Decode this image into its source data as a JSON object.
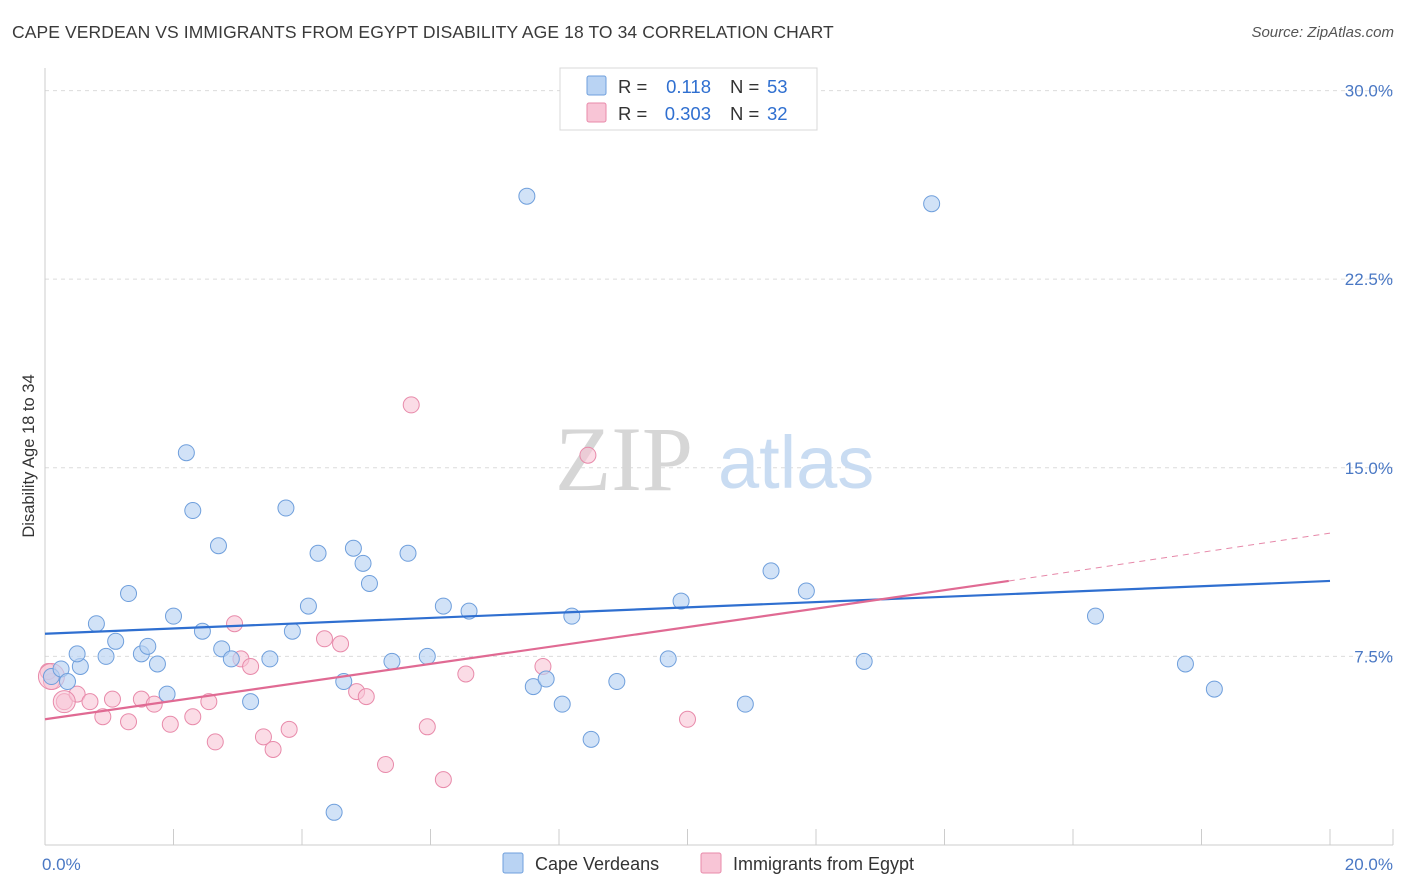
{
  "title": "CAPE VERDEAN VS IMMIGRANTS FROM EGYPT DISABILITY AGE 18 TO 34 CORRELATION CHART",
  "source": "Source: ZipAtlas.com",
  "watermark": {
    "zip": "ZIP",
    "atlas": "atlas"
  },
  "colors": {
    "blue_fill": "#b9d3f3",
    "blue_stroke": "#6f9fdc",
    "blue_line": "#2f6fd0",
    "pink_fill": "#f8c5d6",
    "pink_stroke": "#e88aaa",
    "pink_line": "#e06a93",
    "tick_label": "#4a78c4",
    "grid": "#dcdcdc"
  },
  "legend": {
    "rows": [
      {
        "r_label": "R =",
        "r_value": "0.118",
        "n_label": "N =",
        "n_value": "53"
      },
      {
        "r_label": "R =",
        "r_value": "0.303",
        "n_label": "N =",
        "n_value": "32"
      }
    ]
  },
  "chart_data": {
    "type": "scatter",
    "title": "CAPE VERDEAN VS IMMIGRANTS FROM EGYPT DISABILITY AGE 18 TO 34 CORRELATION CHART",
    "xlabel": "",
    "ylabel": "Disability Age 18 to 34",
    "xlim": [
      0,
      20
    ],
    "ylim": [
      0,
      30.5
    ],
    "x_tick_labels": [
      "0.0%",
      "20.0%"
    ],
    "y_ticks": [
      7.5,
      15.0,
      22.5,
      30.0
    ],
    "y_tick_labels": [
      "7.5%",
      "15.0%",
      "22.5%",
      "30.0%"
    ],
    "legend_position": "top-center",
    "series": [
      {
        "name": "Cape Verdeans",
        "color": "blue",
        "r": 0.118,
        "n": 53,
        "trend": {
          "x": [
            0,
            20
          ],
          "y": [
            8.4,
            10.5
          ]
        },
        "points": [
          [
            0.1,
            6.7
          ],
          [
            0.25,
            7.0
          ],
          [
            0.35,
            6.5
          ],
          [
            0.55,
            7.1
          ],
          [
            0.5,
            7.6
          ],
          [
            0.8,
            8.8
          ],
          [
            0.95,
            7.5
          ],
          [
            1.1,
            8.1
          ],
          [
            1.3,
            10.0
          ],
          [
            1.5,
            7.6
          ],
          [
            1.6,
            7.9
          ],
          [
            1.75,
            7.2
          ],
          [
            1.9,
            6.0
          ],
          [
            2.0,
            9.1
          ],
          [
            2.2,
            15.6
          ],
          [
            2.3,
            13.3
          ],
          [
            2.45,
            8.5
          ],
          [
            2.7,
            11.9
          ],
          [
            2.75,
            7.8
          ],
          [
            2.9,
            7.4
          ],
          [
            3.2,
            5.7
          ],
          [
            3.5,
            7.4
          ],
          [
            3.75,
            13.4
          ],
          [
            3.85,
            8.5
          ],
          [
            4.1,
            9.5
          ],
          [
            4.25,
            11.6
          ],
          [
            4.5,
            1.3
          ],
          [
            4.65,
            6.5
          ],
          [
            4.8,
            11.8
          ],
          [
            4.95,
            11.2
          ],
          [
            5.05,
            10.4
          ],
          [
            5.4,
            7.3
          ],
          [
            5.65,
            11.6
          ],
          [
            5.95,
            7.5
          ],
          [
            6.2,
            9.5
          ],
          [
            6.6,
            9.3
          ],
          [
            7.5,
            25.8
          ],
          [
            7.6,
            6.3
          ],
          [
            7.8,
            6.6
          ],
          [
            8.05,
            5.6
          ],
          [
            8.2,
            9.1
          ],
          [
            8.5,
            4.2
          ],
          [
            8.9,
            6.5
          ],
          [
            9.7,
            7.4
          ],
          [
            9.9,
            9.7
          ],
          [
            10.9,
            5.6
          ],
          [
            11.3,
            10.9
          ],
          [
            11.85,
            10.1
          ],
          [
            12.75,
            7.3
          ],
          [
            13.8,
            25.5
          ],
          [
            16.35,
            9.1
          ],
          [
            17.75,
            7.2
          ],
          [
            18.2,
            6.2
          ]
        ]
      },
      {
        "name": "Immigrants from Egypt",
        "color": "pink",
        "r": 0.303,
        "n": 32,
        "trend": {
          "x": [
            0,
            15
          ],
          "y": [
            5.0,
            10.5
          ]
        },
        "trend_dashed": {
          "x": [
            15,
            20
          ],
          "y": [
            10.5,
            12.4
          ]
        },
        "points": [
          [
            0.1,
            6.5
          ],
          [
            0.3,
            5.7
          ],
          [
            0.5,
            6.0
          ],
          [
            0.7,
            5.7
          ],
          [
            0.9,
            5.1
          ],
          [
            1.05,
            5.8
          ],
          [
            1.3,
            4.9
          ],
          [
            1.5,
            5.8
          ],
          [
            1.7,
            5.6
          ],
          [
            1.95,
            4.8
          ],
          [
            2.3,
            5.1
          ],
          [
            2.55,
            5.7
          ],
          [
            2.65,
            4.1
          ],
          [
            2.95,
            8.8
          ],
          [
            3.05,
            7.4
          ],
          [
            3.2,
            7.1
          ],
          [
            3.4,
            4.3
          ],
          [
            3.55,
            3.8
          ],
          [
            3.8,
            4.6
          ],
          [
            4.35,
            8.2
          ],
          [
            4.6,
            8.0
          ],
          [
            4.85,
            6.1
          ],
          [
            5.0,
            5.9
          ],
          [
            5.3,
            3.2
          ],
          [
            5.7,
            17.5
          ],
          [
            5.95,
            4.7
          ],
          [
            6.2,
            2.6
          ],
          [
            6.55,
            6.8
          ],
          [
            7.75,
            7.1
          ],
          [
            8.45,
            15.5
          ],
          [
            10.0,
            5.0
          ],
          [
            0.05,
            6.9
          ]
        ]
      }
    ]
  },
  "bottom_legend": {
    "items": [
      {
        "label": "Cape Verdeans"
      },
      {
        "label": "Immigrants from Egypt"
      }
    ]
  }
}
